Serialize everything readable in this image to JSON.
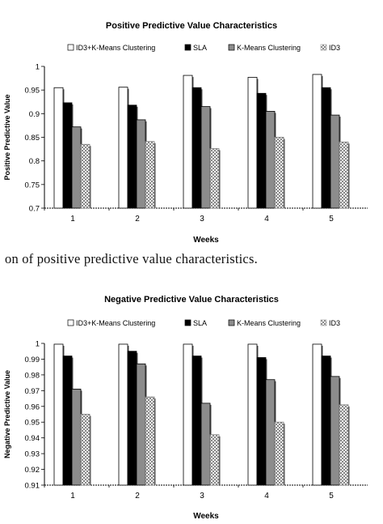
{
  "caption": "on of positive predictive value characteristics.",
  "colors": {
    "ID3+K-Means Clustering": "#ffffff",
    "SLA": "#000000",
    "K-Means Clustering": "#8c8c8c",
    "ID3": "crosshatch"
  },
  "chart_data": [
    {
      "type": "bar",
      "title": "Positive Predictive Value Characteristics",
      "xlabel": "Weeks",
      "ylabel": "Positive Predictive Value",
      "categories": [
        "1",
        "2",
        "3",
        "4",
        "5"
      ],
      "ylim": [
        0.7,
        1
      ],
      "yticks": [
        "0.7",
        "0.75",
        "0.8",
        "0.85",
        "0.9",
        "0.95",
        "1"
      ],
      "legend_position": "top",
      "series": [
        {
          "name": "ID3+K-Means Clustering",
          "values": [
            0.955,
            0.956,
            0.981,
            0.977,
            0.983
          ]
        },
        {
          "name": "SLA",
          "values": [
            0.923,
            0.918,
            0.955,
            0.943,
            0.955
          ]
        },
        {
          "name": "K-Means Clustering",
          "values": [
            0.872,
            0.887,
            0.915,
            0.905,
            0.897
          ]
        },
        {
          "name": "ID3",
          "values": [
            0.835,
            0.841,
            0.826,
            0.85,
            0.84
          ]
        }
      ]
    },
    {
      "type": "bar",
      "title": "Negative Predictive Value Characteristics",
      "xlabel": "Weeks",
      "ylabel": "Negative Predictive Value",
      "categories": [
        "1",
        "2",
        "3",
        "4",
        "5"
      ],
      "ylim": [
        0.91,
        1
      ],
      "yticks": [
        "0.91",
        "0.92",
        "0.93",
        "0.94",
        "0.95",
        "0.96",
        "0.97",
        "0.98",
        "0.99",
        "1"
      ],
      "legend_position": "top",
      "series": [
        {
          "name": "ID3+K-Means Clustering",
          "values": [
            0.9995,
            0.9995,
            0.9995,
            0.9995,
            0.9995
          ]
        },
        {
          "name": "SLA",
          "values": [
            0.992,
            0.995,
            0.992,
            0.991,
            0.992
          ]
        },
        {
          "name": "K-Means Clustering",
          "values": [
            0.971,
            0.987,
            0.962,
            0.977,
            0.979
          ]
        },
        {
          "name": "ID3",
          "values": [
            0.955,
            0.966,
            0.942,
            0.95,
            0.961
          ]
        }
      ]
    }
  ]
}
